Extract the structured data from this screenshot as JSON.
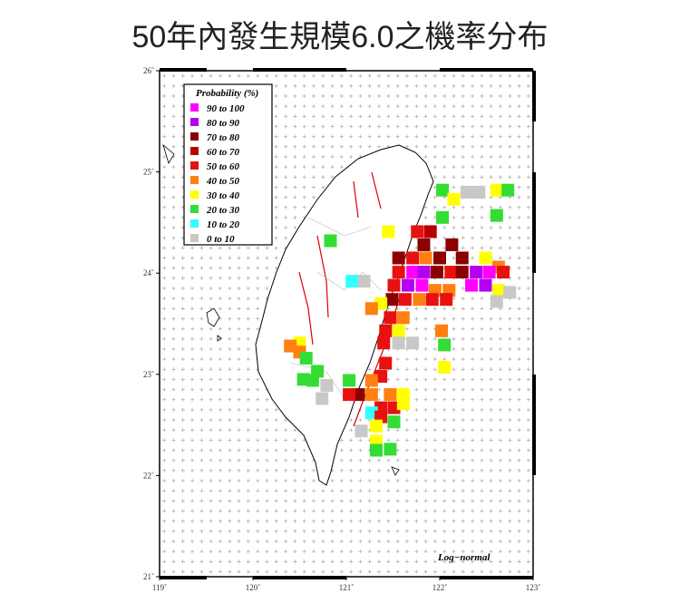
{
  "title": "50年內發生規模6.0之機率分布",
  "map": {
    "xlim": [
      119,
      123
    ],
    "ylim": [
      21,
      26
    ],
    "xticks": [
      {
        "value": 119,
        "label": "119˚"
      },
      {
        "value": 120,
        "label": "120˚"
      },
      {
        "value": 121,
        "label": "121˚"
      },
      {
        "value": 122,
        "label": "122˚"
      },
      {
        "value": 123,
        "label": "123˚"
      }
    ],
    "yticks": [
      {
        "value": 21,
        "label": "21˚"
      },
      {
        "value": 22,
        "label": "22˚"
      },
      {
        "value": 23,
        "label": "23˚"
      },
      {
        "value": 24,
        "label": "24˚"
      },
      {
        "value": 25,
        "label": "25˚"
      },
      {
        "value": 26,
        "label": "26˚"
      }
    ],
    "legend": {
      "title": "Probability (%)",
      "items": [
        {
          "label": "90 to 100",
          "color": "#ff00ff"
        },
        {
          "label": "80 to 90",
          "color": "#b400f0"
        },
        {
          "label": "70 to 80",
          "color": "#8b0000"
        },
        {
          "label": "60 to 70",
          "color": "#b80000"
        },
        {
          "label": "50 to 60",
          "color": "#e81010"
        },
        {
          "label": "40 to 50",
          "color": "#ff7f10"
        },
        {
          "label": "30 to 40",
          "color": "#ffff00"
        },
        {
          "label": "20 to 30",
          "color": "#33dd33"
        },
        {
          "label": "10 to 20",
          "color": "#33ffff"
        },
        {
          "label": "0 to 10",
          "color": "#c8c8c8"
        }
      ]
    },
    "annotation": "Log−normal",
    "cells": [
      {
        "lon": 122.03,
        "lat": 24.82,
        "color": "#33dd33"
      },
      {
        "lon": 122.15,
        "lat": 24.73,
        "color": "#ffff00"
      },
      {
        "lon": 122.29,
        "lat": 24.8,
        "color": "#c8c8c8"
      },
      {
        "lon": 122.42,
        "lat": 24.8,
        "color": "#c8c8c8"
      },
      {
        "lon": 122.61,
        "lat": 24.82,
        "color": "#ffff00"
      },
      {
        "lon": 122.73,
        "lat": 24.82,
        "color": "#33dd33"
      },
      {
        "lon": 122.03,
        "lat": 24.55,
        "color": "#33dd33"
      },
      {
        "lon": 122.61,
        "lat": 24.57,
        "color": "#33dd33"
      },
      {
        "lon": 121.45,
        "lat": 24.41,
        "color": "#ffff00"
      },
      {
        "lon": 121.76,
        "lat": 24.41,
        "color": "#e81010"
      },
      {
        "lon": 121.9,
        "lat": 24.41,
        "color": "#b80000"
      },
      {
        "lon": 121.83,
        "lat": 24.28,
        "color": "#8b0000"
      },
      {
        "lon": 122.13,
        "lat": 24.28,
        "color": "#8b0000"
      },
      {
        "lon": 121.56,
        "lat": 24.15,
        "color": "#8b0000"
      },
      {
        "lon": 121.71,
        "lat": 24.15,
        "color": "#e81010"
      },
      {
        "lon": 121.85,
        "lat": 24.15,
        "color": "#ff7f10"
      },
      {
        "lon": 122.0,
        "lat": 24.15,
        "color": "#8b0000"
      },
      {
        "lon": 122.24,
        "lat": 24.15,
        "color": "#8b0000"
      },
      {
        "lon": 122.49,
        "lat": 24.15,
        "color": "#ffff00"
      },
      {
        "lon": 122.63,
        "lat": 24.06,
        "color": "#ff7f10"
      },
      {
        "lon": 121.56,
        "lat": 24.01,
        "color": "#e81010"
      },
      {
        "lon": 121.71,
        "lat": 24.01,
        "color": "#ff00ff"
      },
      {
        "lon": 121.83,
        "lat": 24.01,
        "color": "#b400f0"
      },
      {
        "lon": 121.97,
        "lat": 24.01,
        "color": "#8b0000"
      },
      {
        "lon": 122.12,
        "lat": 24.01,
        "color": "#e81010"
      },
      {
        "lon": 122.24,
        "lat": 24.01,
        "color": "#8b0000"
      },
      {
        "lon": 122.39,
        "lat": 24.01,
        "color": "#b400f0"
      },
      {
        "lon": 122.53,
        "lat": 24.01,
        "color": "#ff00ff"
      },
      {
        "lon": 122.68,
        "lat": 24.01,
        "color": "#e81010"
      },
      {
        "lon": 121.51,
        "lat": 23.88,
        "color": "#e81010"
      },
      {
        "lon": 121.66,
        "lat": 23.88,
        "color": "#b400f0"
      },
      {
        "lon": 121.81,
        "lat": 23.88,
        "color": "#ff00ff"
      },
      {
        "lon": 121.95,
        "lat": 23.83,
        "color": "#ff7f10"
      },
      {
        "lon": 122.1,
        "lat": 23.83,
        "color": "#ff7f10"
      },
      {
        "lon": 122.34,
        "lat": 23.88,
        "color": "#ff00ff"
      },
      {
        "lon": 122.49,
        "lat": 23.88,
        "color": "#b400f0"
      },
      {
        "lon": 122.63,
        "lat": 23.83,
        "color": "#ffff00"
      },
      {
        "lon": 122.75,
        "lat": 23.81,
        "color": "#c8c8c8"
      },
      {
        "lon": 121.49,
        "lat": 23.74,
        "color": "#8b0000"
      },
      {
        "lon": 121.63,
        "lat": 23.74,
        "color": "#e81010"
      },
      {
        "lon": 121.78,
        "lat": 23.74,
        "color": "#ff7f10"
      },
      {
        "lon": 121.92,
        "lat": 23.74,
        "color": "#e81010"
      },
      {
        "lon": 122.07,
        "lat": 23.74,
        "color": "#e81010"
      },
      {
        "lon": 122.61,
        "lat": 23.72,
        "color": "#c8c8c8"
      },
      {
        "lon": 121.37,
        "lat": 23.7,
        "color": "#ffff00"
      },
      {
        "lon": 121.27,
        "lat": 23.65,
        "color": "#ff7f10"
      },
      {
        "lon": 121.47,
        "lat": 23.56,
        "color": "#e81010"
      },
      {
        "lon": 121.61,
        "lat": 23.56,
        "color": "#ff7f10"
      },
      {
        "lon": 121.42,
        "lat": 23.43,
        "color": "#e81010"
      },
      {
        "lon": 121.56,
        "lat": 23.43,
        "color": "#ffff00"
      },
      {
        "lon": 122.02,
        "lat": 23.43,
        "color": "#ff7f10"
      },
      {
        "lon": 121.4,
        "lat": 23.31,
        "color": "#e81010"
      },
      {
        "lon": 121.56,
        "lat": 23.31,
        "color": "#c8c8c8"
      },
      {
        "lon": 121.71,
        "lat": 23.31,
        "color": "#c8c8c8"
      },
      {
        "lon": 122.05,
        "lat": 23.29,
        "color": "#33dd33"
      },
      {
        "lon": 122.05,
        "lat": 23.07,
        "color": "#ffff00"
      },
      {
        "lon": 121.42,
        "lat": 23.11,
        "color": "#e81010"
      },
      {
        "lon": 121.37,
        "lat": 22.98,
        "color": "#e81010"
      },
      {
        "lon": 121.27,
        "lat": 22.94,
        "color": "#ff7f10"
      },
      {
        "lon": 121.03,
        "lat": 22.94,
        "color": "#33dd33"
      },
      {
        "lon": 121.13,
        "lat": 22.8,
        "color": "#8b0000"
      },
      {
        "lon": 121.03,
        "lat": 22.8,
        "color": "#e81010"
      },
      {
        "lon": 121.27,
        "lat": 22.8,
        "color": "#ff7f10"
      },
      {
        "lon": 121.47,
        "lat": 22.8,
        "color": "#ff7f10"
      },
      {
        "lon": 121.61,
        "lat": 22.8,
        "color": "#ffff00"
      },
      {
        "lon": 121.37,
        "lat": 22.67,
        "color": "#e81010"
      },
      {
        "lon": 121.51,
        "lat": 22.67,
        "color": "#e81010"
      },
      {
        "lon": 121.61,
        "lat": 22.71,
        "color": "#ffff00"
      },
      {
        "lon": 121.27,
        "lat": 22.62,
        "color": "#33ffff"
      },
      {
        "lon": 121.37,
        "lat": 22.58,
        "color": "#e81010"
      },
      {
        "lon": 121.51,
        "lat": 22.53,
        "color": "#33dd33"
      },
      {
        "lon": 121.16,
        "lat": 22.44,
        "color": "#c8c8c8"
      },
      {
        "lon": 121.32,
        "lat": 22.49,
        "color": "#ffff00"
      },
      {
        "lon": 121.32,
        "lat": 22.34,
        "color": "#ffff00"
      },
      {
        "lon": 121.47,
        "lat": 22.26,
        "color": "#33dd33"
      },
      {
        "lon": 121.32,
        "lat": 22.25,
        "color": "#33dd33"
      },
      {
        "lon": 120.5,
        "lat": 23.31,
        "color": "#ffff00"
      },
      {
        "lon": 120.4,
        "lat": 23.28,
        "color": "#ff7f10"
      },
      {
        "lon": 120.5,
        "lat": 23.22,
        "color": "#ff7f10"
      },
      {
        "lon": 120.57,
        "lat": 23.16,
        "color": "#33dd33"
      },
      {
        "lon": 120.69,
        "lat": 23.03,
        "color": "#33dd33"
      },
      {
        "lon": 120.54,
        "lat": 22.95,
        "color": "#33dd33"
      },
      {
        "lon": 120.64,
        "lat": 22.94,
        "color": "#33dd33"
      },
      {
        "lon": 120.74,
        "lat": 22.76,
        "color": "#c8c8c8"
      },
      {
        "lon": 120.79,
        "lat": 22.89,
        "color": "#c8c8c8"
      },
      {
        "lon": 120.83,
        "lat": 24.32,
        "color": "#33dd33"
      },
      {
        "lon": 121.06,
        "lat": 23.92,
        "color": "#33ffff"
      },
      {
        "lon": 121.19,
        "lat": 23.92,
        "color": "#c8c8c8"
      }
    ]
  }
}
